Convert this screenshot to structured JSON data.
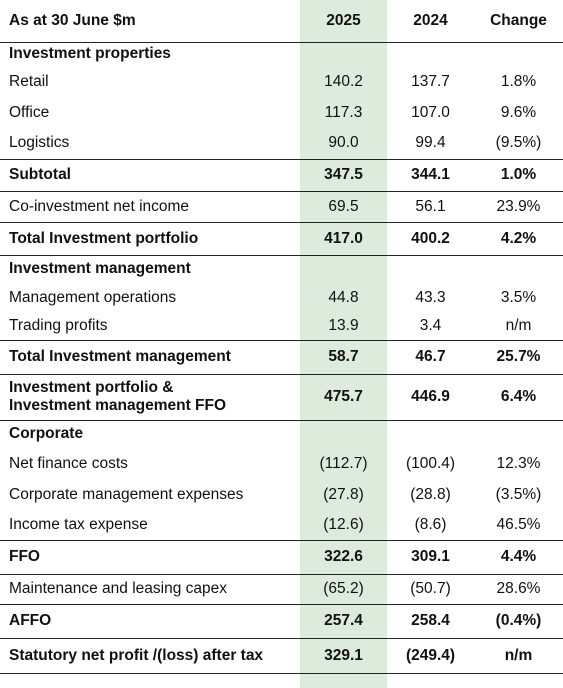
{
  "header": {
    "label": "As at 30 June $m",
    "col_2025": "2025",
    "col_2024": "2024",
    "col_change": "Change"
  },
  "rows": [
    {
      "label": "Investment properties",
      "v2025": "",
      "v2024": "",
      "change": ""
    },
    {
      "label": "Retail",
      "v2025": "140.2",
      "v2024": "137.7",
      "change": "1.8%"
    },
    {
      "label": "Office",
      "v2025": "117.3",
      "v2024": "107.0",
      "change": "9.6%"
    },
    {
      "label": "Logistics",
      "v2025": "90.0",
      "v2024": "99.4",
      "change": "(9.5%)"
    },
    {
      "label": "Subtotal",
      "v2025": "347.5",
      "v2024": "344.1",
      "change": "1.0%"
    },
    {
      "label": "Co-investment net income",
      "v2025": "69.5",
      "v2024": "56.1",
      "change": "23.9%"
    },
    {
      "label": "Total Investment portfolio",
      "v2025": "417.0",
      "v2024": "400.2",
      "change": "4.2%"
    },
    {
      "label": "Investment management",
      "v2025": "",
      "v2024": "",
      "change": ""
    },
    {
      "label": "Management operations",
      "v2025": "44.8",
      "v2024": "43.3",
      "change": "3.5%"
    },
    {
      "label": "Trading profits",
      "v2025": "13.9",
      "v2024": "3.4",
      "change": "n/m"
    },
    {
      "label": "Total Investment management",
      "v2025": "58.7",
      "v2024": "46.7",
      "change": "25.7%"
    },
    {
      "label_line1": "Investment portfolio &",
      "label_line2": "Investment management FFO",
      "v2025": "475.7",
      "v2024": "446.9",
      "change": "6.4%"
    },
    {
      "label": "Corporate",
      "v2025": "",
      "v2024": "",
      "change": ""
    },
    {
      "label": "Net finance costs",
      "v2025": "(112.7)",
      "v2024": "(100.4)",
      "change": "12.3%"
    },
    {
      "label": "Corporate management expenses",
      "v2025": "(27.8)",
      "v2024": "(28.8)",
      "change": "(3.5%)"
    },
    {
      "label": "Income tax expense",
      "v2025": "(12.6)",
      "v2024": "(8.6)",
      "change": "46.5%"
    },
    {
      "label": "FFO",
      "v2025": "322.6",
      "v2024": "309.1",
      "change": "4.4%"
    },
    {
      "label": "Maintenance and leasing capex",
      "v2025": "(65.2)",
      "v2024": "(50.7)",
      "change": "28.6%"
    },
    {
      "label": "AFFO",
      "v2025": "257.4",
      "v2024": "258.4",
      "change": "(0.4%)"
    },
    {
      "label": "Statutory net profit /(loss) after tax",
      "v2025": "329.1",
      "v2024": "(249.4)",
      "change": "n/m"
    }
  ],
  "colors": {
    "highlight_column": "#dcebdc",
    "rule": "#222222"
  }
}
